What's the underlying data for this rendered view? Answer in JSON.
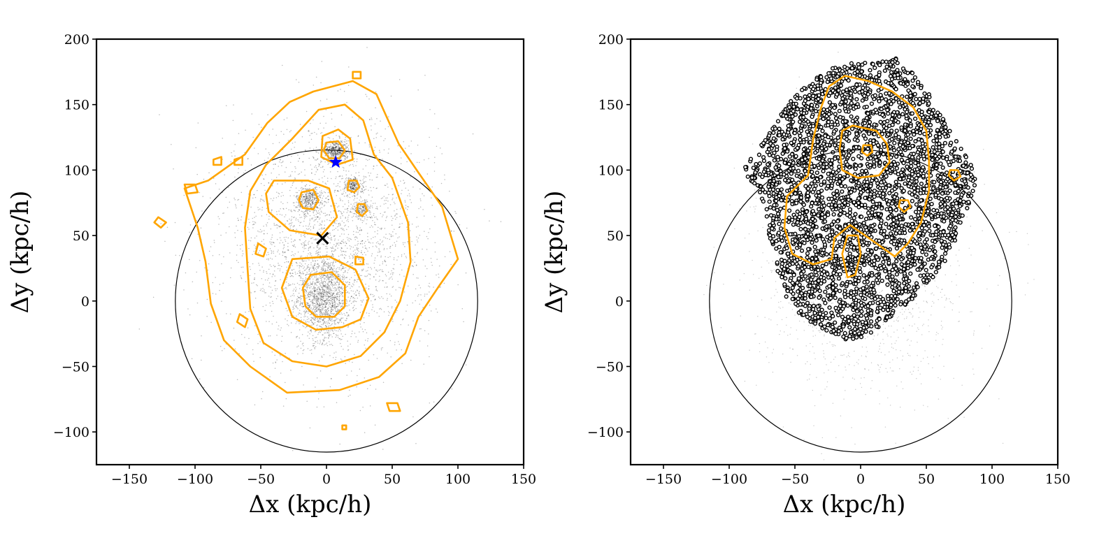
{
  "chart_data": [
    {
      "type": "scatter",
      "panel": "left",
      "xlabel": "Δx (kpc/h)",
      "ylabel": "Δy (kpc/h)",
      "xlim": [
        -175,
        150
      ],
      "ylim": [
        -125,
        200
      ],
      "xticks": [
        -150,
        -100,
        -50,
        0,
        50,
        100,
        150
      ],
      "yticks": [
        -100,
        -50,
        0,
        50,
        100,
        150,
        200
      ],
      "xtick_labels": [
        "−150",
        "−100",
        "−50",
        "0",
        "50",
        "100",
        "150"
      ],
      "ytick_labels": [
        "−100",
        "−50",
        "0",
        "50",
        "100",
        "150",
        "200"
      ],
      "circle": {
        "cx": 0,
        "cy": 0,
        "r": 115
      },
      "density_clumps": [
        {
          "x": -2,
          "y": 3,
          "sx": 10,
          "sy": 16,
          "n": 1400
        },
        {
          "x": 7,
          "y": 115,
          "sx": 5,
          "sy": 4,
          "n": 450
        },
        {
          "x": -13,
          "y": 77,
          "sx": 5,
          "sy": 5,
          "n": 350
        },
        {
          "x": 20,
          "y": 88,
          "sx": 3.5,
          "sy": 3.5,
          "n": 220
        },
        {
          "x": 27,
          "y": 70,
          "sx": 3.5,
          "sy": 3.5,
          "n": 160
        },
        {
          "x": 2,
          "y": 45,
          "sx": 40,
          "sy": 45,
          "n": 2600
        }
      ],
      "contours": [
        [
          [
            -10,
            160
          ],
          [
            20,
            168
          ],
          [
            38,
            158
          ],
          [
            46,
            140
          ],
          [
            55,
            120
          ],
          [
            70,
            98
          ],
          [
            88,
            72
          ],
          [
            100,
            32
          ],
          [
            86,
            12
          ],
          [
            70,
            -12
          ],
          [
            60,
            -40
          ],
          [
            40,
            -58
          ],
          [
            10,
            -68
          ],
          [
            -30,
            -70
          ],
          [
            -58,
            -50
          ],
          [
            -78,
            -30
          ],
          [
            -88,
            -2
          ],
          [
            -92,
            30
          ],
          [
            -98,
            56
          ],
          [
            -108,
            86
          ],
          [
            -90,
            92
          ],
          [
            -62,
            112
          ],
          [
            -45,
            136
          ],
          [
            -28,
            152
          ]
        ],
        [
          [
            -6,
            146
          ],
          [
            14,
            150
          ],
          [
            28,
            138
          ],
          [
            36,
            112
          ],
          [
            50,
            94
          ],
          [
            62,
            60
          ],
          [
            64,
            30
          ],
          [
            56,
            0
          ],
          [
            44,
            -24
          ],
          [
            26,
            -42
          ],
          [
            0,
            -50
          ],
          [
            -26,
            -46
          ],
          [
            -48,
            -32
          ],
          [
            -58,
            -6
          ],
          [
            -60,
            24
          ],
          [
            -62,
            56
          ],
          [
            -58,
            84
          ],
          [
            -46,
            104
          ],
          [
            -26,
            124
          ]
        ],
        [
          [
            -3,
            126
          ],
          [
            9,
            131
          ],
          [
            18,
            124
          ],
          [
            20,
            108
          ],
          [
            8,
            104
          ],
          [
            -4,
            110
          ]
        ],
        [
          [
            -40,
            92
          ],
          [
            -14,
            92
          ],
          [
            2,
            86
          ],
          [
            8,
            64
          ],
          [
            -4,
            50
          ],
          [
            -28,
            54
          ],
          [
            -44,
            68
          ],
          [
            -46,
            82
          ]
        ],
        [
          [
            -26,
            32
          ],
          [
            2,
            34
          ],
          [
            22,
            24
          ],
          [
            32,
            2
          ],
          [
            26,
            -14
          ],
          [
            12,
            -20
          ],
          [
            -8,
            -22
          ],
          [
            -26,
            -12
          ],
          [
            -34,
            10
          ]
        ],
        [
          [
            -12,
            20
          ],
          [
            4,
            22
          ],
          [
            14,
            12
          ],
          [
            14,
            -4
          ],
          [
            6,
            -12
          ],
          [
            -8,
            -12
          ],
          [
            -16,
            -4
          ],
          [
            -18,
            10
          ]
        ],
        [
          [
            0,
            121
          ],
          [
            9,
            122
          ],
          [
            14,
            115
          ],
          [
            10,
            109
          ],
          [
            2,
            109
          ],
          [
            -2,
            115
          ]
        ],
        [
          [
            -19,
            83
          ],
          [
            -10,
            85
          ],
          [
            -6,
            77
          ],
          [
            -10,
            70
          ],
          [
            -18,
            71
          ],
          [
            -21,
            77
          ]
        ],
        [
          [
            17,
            92
          ],
          [
            23,
            92
          ],
          [
            25,
            87
          ],
          [
            21,
            83
          ],
          [
            16,
            85
          ]
        ],
        [
          [
            24,
            74
          ],
          [
            29,
            74
          ],
          [
            31,
            69
          ],
          [
            27,
            65
          ],
          [
            23,
            68
          ]
        ],
        [
          [
            -108,
            89
          ],
          [
            -100,
            89
          ],
          [
            -98,
            83
          ],
          [
            -106,
            82
          ]
        ],
        [
          [
            -128,
            64
          ],
          [
            -122,
            60
          ],
          [
            -126,
            56
          ],
          [
            -131,
            60
          ]
        ],
        [
          [
            -52,
            44
          ],
          [
            -46,
            40
          ],
          [
            -48,
            34
          ],
          [
            -54,
            36
          ]
        ],
        [
          [
            -66,
            -10
          ],
          [
            -60,
            -14
          ],
          [
            -62,
            -20
          ],
          [
            -68,
            -16
          ]
        ],
        [
          [
            22,
            34
          ],
          [
            28,
            33
          ],
          [
            28,
            28
          ],
          [
            22,
            28
          ]
        ],
        [
          [
            46,
            -78
          ],
          [
            54,
            -78
          ],
          [
            56,
            -84
          ],
          [
            48,
            -84
          ]
        ],
        [
          [
            12,
            -95
          ],
          [
            15,
            -95
          ],
          [
            15,
            -98
          ],
          [
            12,
            -98
          ]
        ],
        [
          [
            20,
            175
          ],
          [
            26,
            175
          ],
          [
            26,
            170
          ],
          [
            20,
            170
          ]
        ],
        [
          [
            -70,
            108
          ],
          [
            -64,
            110
          ],
          [
            -64,
            104
          ],
          [
            -70,
            104
          ]
        ],
        [
          [
            -86,
            108
          ],
          [
            -80,
            110
          ],
          [
            -80,
            104
          ],
          [
            -86,
            104
          ]
        ]
      ],
      "markers": [
        {
          "type": "star",
          "x": 7,
          "y": 106,
          "color": "#0000ff"
        },
        {
          "type": "x",
          "x": -3,
          "y": 48,
          "color": "#000000"
        }
      ]
    },
    {
      "type": "scatter",
      "panel": "right",
      "xlabel": "Δx (kpc/h)",
      "ylabel": "Δy (kpc/h)",
      "xlim": [
        -175,
        150
      ],
      "ylim": [
        -125,
        200
      ],
      "xticks": [
        -150,
        -100,
        -50,
        0,
        50,
        100,
        150
      ],
      "yticks": [
        -100,
        -50,
        0,
        50,
        100,
        150,
        200
      ],
      "xtick_labels": [
        "−150",
        "−100",
        "−50",
        "0",
        "50",
        "100",
        "150"
      ],
      "ytick_labels": [
        "−100",
        "−50",
        "0",
        "50",
        "100",
        "150",
        "200"
      ],
      "circle": {
        "cx": 0,
        "cy": 0,
        "r": 115
      },
      "faint_points": {
        "x": 0,
        "y": 20,
        "sx": 40,
        "sy": 45,
        "n": 1400
      },
      "open_circle_region": [
        [
          -10,
          182
        ],
        [
          10,
          184
        ],
        [
          26,
          186
        ],
        [
          38,
          176
        ],
        [
          52,
          158
        ],
        [
          68,
          130
        ],
        [
          84,
          108
        ],
        [
          88,
          90
        ],
        [
          78,
          62
        ],
        [
          72,
          44
        ],
        [
          62,
          26
        ],
        [
          52,
          14
        ],
        [
          36,
          -2
        ],
        [
          20,
          -14
        ],
        [
          5,
          -28
        ],
        [
          -10,
          -30
        ],
        [
          -28,
          -22
        ],
        [
          -46,
          -12
        ],
        [
          -58,
          4
        ],
        [
          -66,
          28
        ],
        [
          -72,
          60
        ],
        [
          -76,
          82
        ],
        [
          -90,
          100
        ],
        [
          -72,
          124
        ],
        [
          -58,
          148
        ],
        [
          -40,
          166
        ],
        [
          -22,
          178
        ]
      ],
      "open_circle_count": 3200,
      "contours": [
        [
          [
            -12,
            172
          ],
          [
            6,
            168
          ],
          [
            24,
            160
          ],
          [
            40,
            148
          ],
          [
            50,
            130
          ],
          [
            52,
            108
          ],
          [
            52,
            84
          ],
          [
            46,
            60
          ],
          [
            36,
            44
          ],
          [
            26,
            34
          ],
          [
            12,
            44
          ],
          [
            -8,
            58
          ],
          [
            -20,
            48
          ],
          [
            -22,
            32
          ],
          [
            -36,
            28
          ],
          [
            -52,
            36
          ],
          [
            -58,
            56
          ],
          [
            -56,
            80
          ],
          [
            -40,
            96
          ],
          [
            -36,
            124
          ],
          [
            -30,
            148
          ],
          [
            -24,
            164
          ]
        ],
        [
          [
            -14,
            130
          ],
          [
            -6,
            134
          ],
          [
            12,
            130
          ],
          [
            20,
            120
          ],
          [
            22,
            106
          ],
          [
            14,
            96
          ],
          [
            -2,
            94
          ],
          [
            -14,
            100
          ],
          [
            -16,
            116
          ]
        ],
        [
          [
            2,
            119
          ],
          [
            8,
            119
          ],
          [
            9,
            114
          ],
          [
            5,
            111
          ],
          [
            1,
            114
          ]
        ],
        [
          [
            30,
            77
          ],
          [
            36,
            77
          ],
          [
            38,
            72
          ],
          [
            33,
            68
          ],
          [
            29,
            72
          ]
        ],
        [
          [
            68,
            100
          ],
          [
            74,
            100
          ],
          [
            76,
            95
          ],
          [
            71,
            92
          ],
          [
            67,
            96
          ]
        ],
        [
          [
            -10,
            50
          ],
          [
            -2,
            50
          ],
          [
            0,
            36
          ],
          [
            -4,
            20
          ],
          [
            -10,
            18
          ],
          [
            -14,
            36
          ]
        ]
      ]
    }
  ]
}
